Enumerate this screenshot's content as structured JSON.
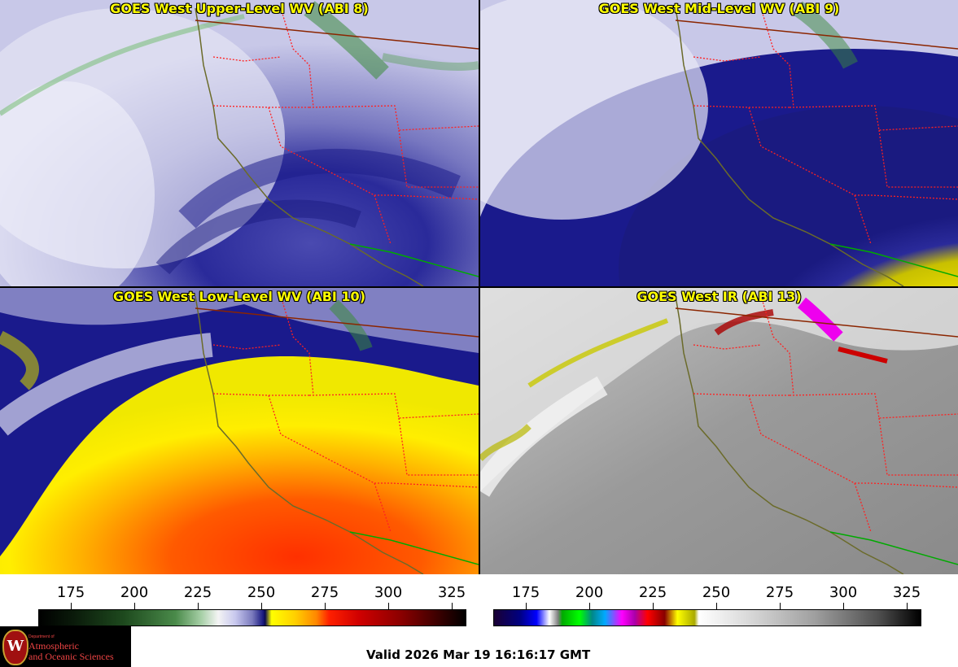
{
  "panels": [
    {
      "title": "GOES West Upper-Level WV (ABI 8)",
      "colorbar": "water-vapor"
    },
    {
      "title": "GOES West Mid-Level WV (ABI 9)",
      "colorbar": "water-vapor"
    },
    {
      "title": "GOES West Low-Level WV (ABI 10)",
      "colorbar": "water-vapor"
    },
    {
      "title": "GOES West IR (ABI 13)",
      "colorbar": "infrared"
    }
  ],
  "colorbars": [
    {
      "name": "water-vapor",
      "ticks": [
        "175",
        "200",
        "225",
        "250",
        "275",
        "300",
        "325"
      ]
    },
    {
      "name": "infrared",
      "ticks": [
        "175",
        "200",
        "225",
        "250",
        "275",
        "300",
        "325"
      ]
    }
  ],
  "logo": {
    "seal_letter": "W",
    "department": "Department of",
    "line1": "Atmospheric",
    "line2": "and Oceanic Sciences"
  },
  "footer": {
    "valid": "Valid 2026 Mar 19 16:16:17 GMT"
  },
  "colors": {
    "title_text": "#ffff00",
    "state_borders": "#ff2020",
    "coastline": "#6b6b2a",
    "mexico_border": "#00aa00",
    "canada_border": "#8b2500"
  }
}
